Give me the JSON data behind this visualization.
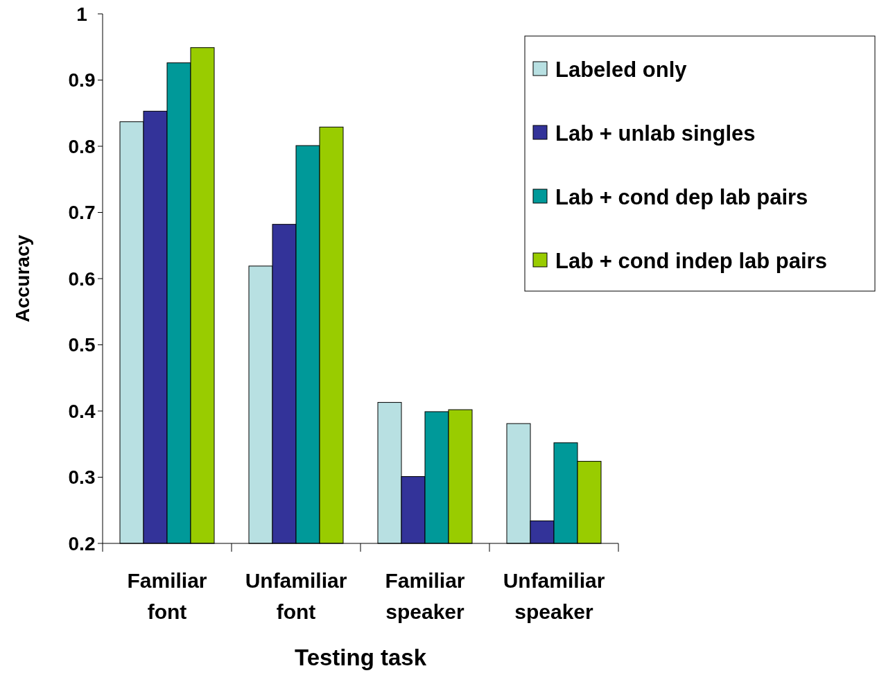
{
  "chart_data": {
    "type": "bar",
    "xlabel": "Testing task",
    "ylabel": "Accuracy",
    "categories": [
      "Familiar font",
      "Unfamiliar font",
      "Familiar speaker",
      "Unfamiliar speaker"
    ],
    "series": [
      {
        "name": "Labeled only",
        "color": "#b8e0e2",
        "values": [
          0.837,
          0.619,
          0.413,
          0.381
        ]
      },
      {
        "name": "Lab + unlab singles",
        "color": "#333399",
        "values": [
          0.853,
          0.682,
          0.301,
          0.234
        ]
      },
      {
        "name": "Lab + cond dep lab pairs",
        "color": "#009999",
        "values": [
          0.926,
          0.801,
          0.399,
          0.352
        ]
      },
      {
        "name": "Lab + cond indep lab pairs",
        "color": "#99cc00",
        "values": [
          0.949,
          0.829,
          0.402,
          0.324
        ]
      }
    ],
    "ylim": [
      0.2,
      1
    ],
    "yticks": [
      0.2,
      0.3,
      0.4,
      0.5,
      0.6,
      0.7,
      0.8,
      0.9,
      1
    ],
    "grid": false,
    "legend": "top right"
  }
}
